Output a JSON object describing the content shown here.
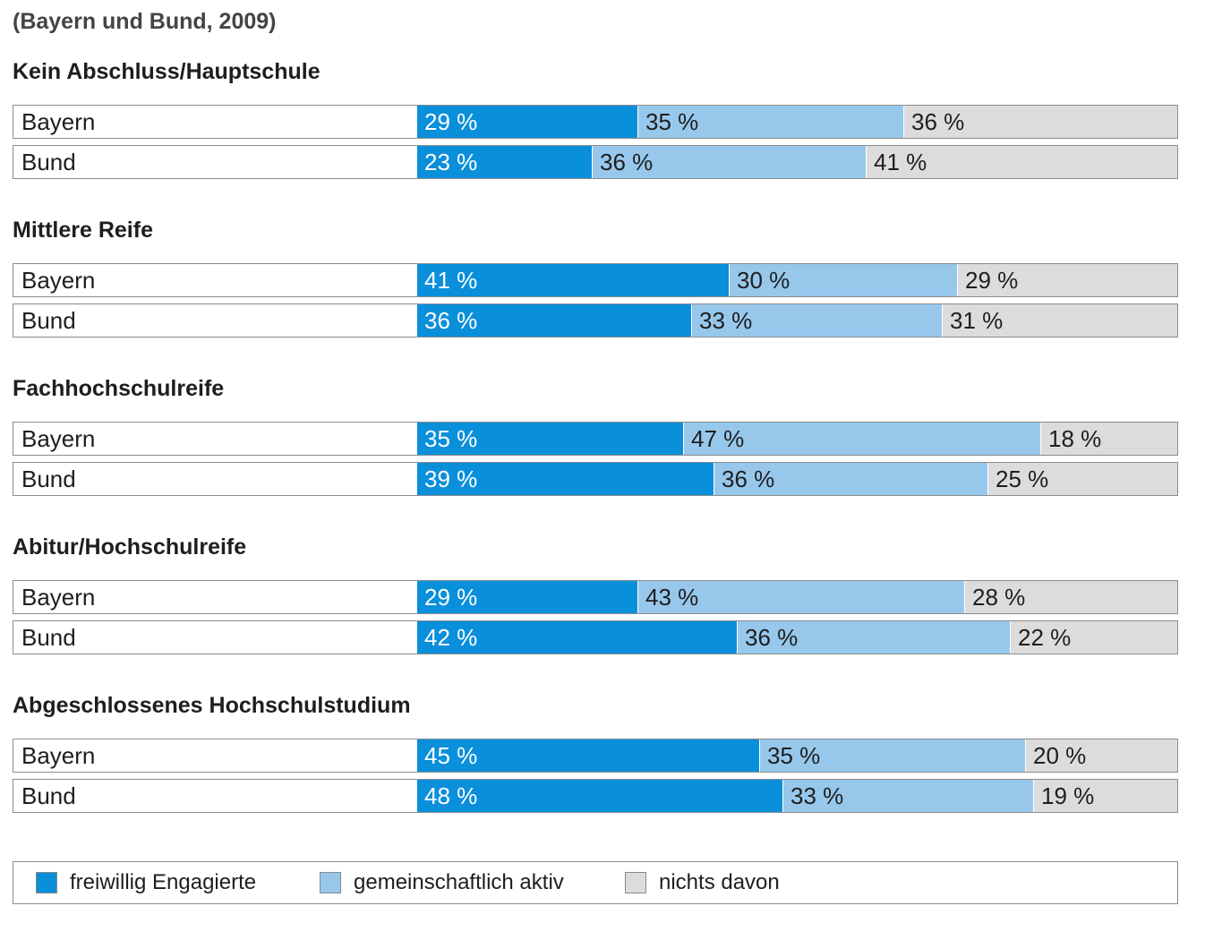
{
  "chart_data": {
    "type": "bar",
    "stacked": true,
    "orientation": "horizontal",
    "subtitle": "(Bayern und Bund, 2009)",
    "value_suffix": " %",
    "series_meta": [
      {
        "name": "freiwillig Engagierte",
        "color": "#0a8fdb",
        "text_color": "#ffffff"
      },
      {
        "name": "gemeinschaftlich aktiv",
        "color": "#97c8ec",
        "text_color": "#1e1e1e"
      },
      {
        "name": "nichts davon",
        "color": "#dcdcdd",
        "text_color": "#1e1e1e"
      }
    ],
    "groups": [
      {
        "title": "Kein Abschluss/Hauptschule",
        "rows": [
          {
            "label": "Bayern",
            "values": [
              29,
              35,
              36
            ]
          },
          {
            "label": "Bund",
            "values": [
              23,
              36,
              41
            ]
          }
        ]
      },
      {
        "title": "Mittlere Reife",
        "rows": [
          {
            "label": "Bayern",
            "values": [
              41,
              30,
              29
            ]
          },
          {
            "label": "Bund",
            "values": [
              36,
              33,
              31
            ]
          }
        ]
      },
      {
        "title": "Fachhochschulreife",
        "rows": [
          {
            "label": "Bayern",
            "values": [
              35,
              47,
              18
            ]
          },
          {
            "label": "Bund",
            "values": [
              39,
              36,
              25
            ]
          }
        ]
      },
      {
        "title": "Abitur/Hochschulreife",
        "rows": [
          {
            "label": "Bayern",
            "values": [
              29,
              43,
              28
            ]
          },
          {
            "label": "Bund",
            "values": [
              42,
              36,
              22
            ]
          }
        ]
      },
      {
        "title": "Abgeschlossenes Hochschulstudium",
        "rows": [
          {
            "label": "Bayern",
            "values": [
              45,
              35,
              20
            ]
          },
          {
            "label": "Bund",
            "values": [
              48,
              33,
              19
            ]
          }
        ]
      }
    ],
    "legend_position": "bottom"
  }
}
